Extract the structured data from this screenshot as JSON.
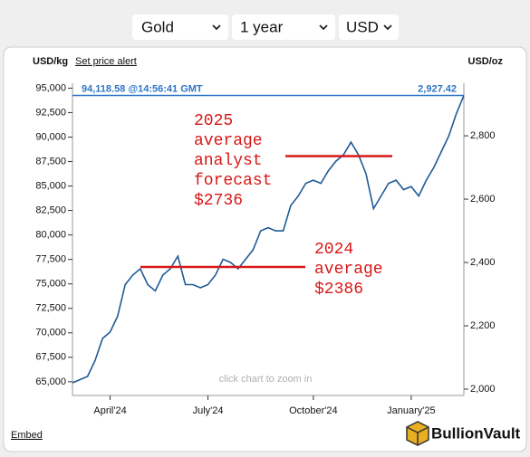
{
  "controls": {
    "metal": "Gold",
    "period": "1 year",
    "currency": "USD"
  },
  "links": {
    "alert": "Set price alert",
    "embed": "Embed"
  },
  "brand": "BullionVault",
  "chart_data": {
    "type": "line",
    "y_label": "USD/kg",
    "y2_label": "USD/oz",
    "hint": "click chart to zoom in",
    "categories": [
      null,
      null,
      null,
      null,
      null,
      "April'24",
      null,
      null,
      null,
      null,
      null,
      null,
      null,
      null,
      null,
      null,
      null,
      null,
      "July'24",
      null,
      null,
      null,
      null,
      null,
      null,
      null,
      null,
      null,
      null,
      null,
      null,
      null,
      "October'24",
      null,
      null,
      null,
      null,
      null,
      null,
      null,
      null,
      null,
      null,
      null,
      null,
      "January'25",
      null,
      null,
      null,
      null,
      null,
      null,
      null
    ],
    "series": [
      {
        "color": "#1f5a96",
        "axis": "y2",
        "values": [
          2020,
          2030,
          2040,
          2090,
          2160,
          2180,
          2230,
          2330,
          2360,
          2380,
          2330,
          2310,
          2360,
          2380,
          2420,
          2330,
          2330,
          2320,
          2330,
          2360,
          2410,
          2400,
          2380,
          2410,
          2440,
          2500,
          2510,
          2500,
          2500,
          2580,
          2610,
          2650,
          2660,
          2650,
          2690,
          2720,
          2740,
          2780,
          2740,
          2680,
          2570,
          2610,
          2650,
          2660,
          2630,
          2640,
          2610,
          2660,
          2700,
          2750,
          2800,
          2870,
          2927.42
        ]
      }
    ],
    "ylim": [
      63600,
      95500
    ],
    "yticks": [
      {
        "value": 65000,
        "label": "65,000"
      },
      {
        "value": 67500,
        "label": "67,500"
      },
      {
        "value": 70000,
        "label": "70,000"
      },
      {
        "value": 72500,
        "label": "72,500"
      },
      {
        "value": 75000,
        "label": "75,000"
      },
      {
        "value": 77500,
        "label": "77,500"
      },
      {
        "value": 80000,
        "label": "80,000"
      },
      {
        "value": 82500,
        "label": "82,500"
      },
      {
        "value": 85000,
        "label": "85,000"
      },
      {
        "value": 87500,
        "label": "87,500"
      },
      {
        "value": 90000,
        "label": "90,000"
      },
      {
        "value": 92500,
        "label": "92,500"
      },
      {
        "value": 95000,
        "label": "95,000"
      }
    ],
    "y2lim": [
      1980,
      2966
    ],
    "y2ticks": [
      {
        "value": 2000,
        "label": "2,000"
      },
      {
        "value": 2200,
        "label": "2,200"
      },
      {
        "value": 2400,
        "label": "2,400"
      },
      {
        "value": 2600,
        "label": "2,600"
      },
      {
        "value": 2800,
        "label": "2,800"
      }
    ],
    "current": {
      "value": 2927.42,
      "label": "2,927.42",
      "kg_label": "94,118.58 @14:56:41 GMT",
      "color": "#2e75c8"
    },
    "annotations": [
      {
        "lines": [
          "2025",
          "average",
          "analyst",
          "forecast",
          "$2736"
        ],
        "value": 2736,
        "color": "#d81818"
      },
      {
        "lines": [
          "2024",
          "average",
          "$2386"
        ],
        "value": 2386,
        "color": "#d81818"
      }
    ]
  }
}
